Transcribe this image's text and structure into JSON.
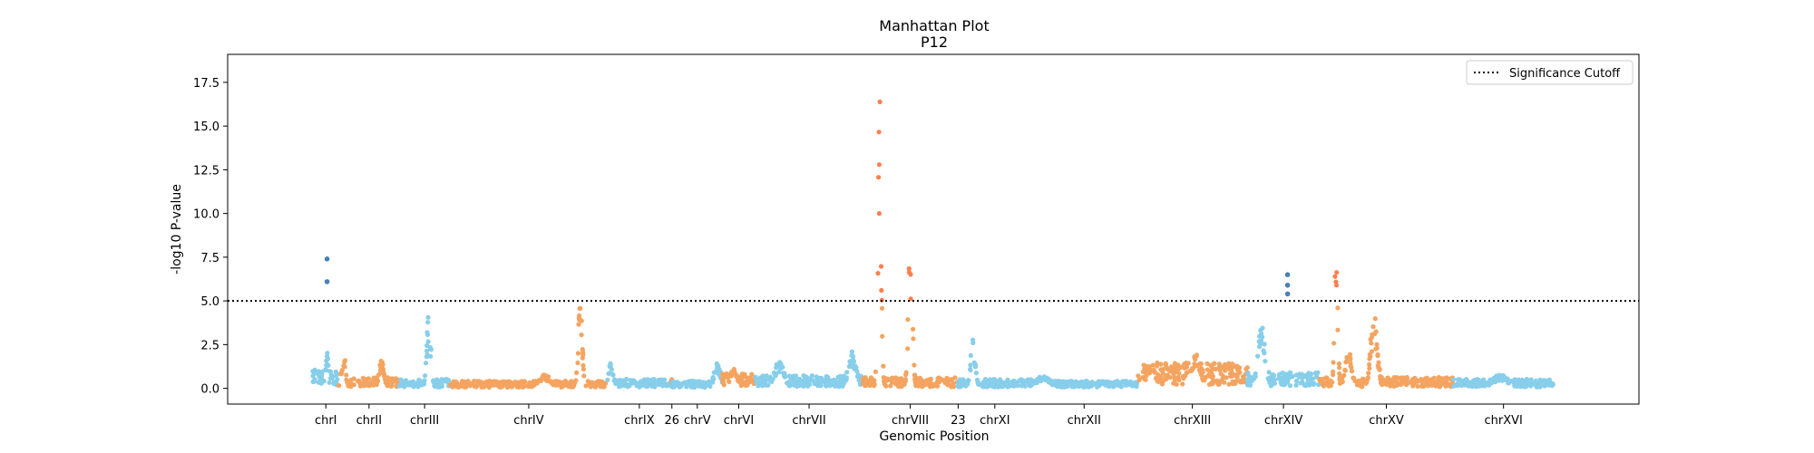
{
  "chart_data": {
    "type": "scatter",
    "title": "Manhattan Plot",
    "subtitle": "P12",
    "xlabel": "Genomic Position",
    "ylabel": "-log10 P-value",
    "ylim": [
      -0.9,
      19.1
    ],
    "yticks": [
      "0.0",
      "2.5",
      "5.0",
      "7.5",
      "10.0",
      "12.5",
      "15.0",
      "17.5"
    ],
    "significance_cutoff": 5.0,
    "legend": {
      "label": "Significance Cutoff",
      "position": "top-right"
    },
    "colors": {
      "sky": "#87ceeb",
      "sandy": "#f4a460",
      "significant_sky": "#4682b4",
      "significant_sandy": "#ff7f50",
      "cutoff_line": "#000000"
    },
    "chromosomes": [
      {
        "label": "chrI",
        "start": 0,
        "end": 22,
        "base": "sky",
        "level": 1.0,
        "peaks": [
          [
            12,
            2.2,
            1.5
          ]
        ],
        "sig": [
          [
            12,
            7.4,
            1
          ],
          [
            12,
            6.1,
            1
          ]
        ]
      },
      {
        "label": "chrII",
        "start": 22,
        "end": 73,
        "base": "sandy",
        "level": 0.6,
        "peaks": [
          [
            4,
            2.2,
            2.5
          ],
          [
            36,
            1.6,
            3
          ]
        ],
        "sig": []
      },
      {
        "label": "chrIII",
        "start": 73,
        "end": 116,
        "base": "sky",
        "level": 0.5,
        "peaks": [
          [
            25,
            4.5,
            2.5
          ]
        ],
        "sig": []
      },
      {
        "label": "chrIV",
        "start": 116,
        "end": 249,
        "base": "sandy",
        "level": 0.4,
        "peaks": [
          [
            110,
            5.0,
            2.5
          ],
          [
            80,
            0.8,
            8
          ]
        ],
        "sig": []
      },
      {
        "label": "chrIX",
        "start": 249,
        "end": 303,
        "base": "sky",
        "level": 0.5,
        "peaks": [
          [
            3,
            1.5,
            3
          ]
        ],
        "sig": []
      },
      {
        "label": "26",
        "start": 303,
        "end": 304,
        "base": "sandy",
        "level": 0.5,
        "peaks": [],
        "sig": []
      },
      {
        "label": "chrV",
        "start": 304,
        "end": 346,
        "base": "sky",
        "level": 0.4,
        "peaks": [
          [
            38,
            1.5,
            4
          ]
        ],
        "sig": []
      },
      {
        "label": "chrVI",
        "start": 346,
        "end": 374,
        "base": "sandy",
        "level": 0.8,
        "peaks": [
          [
            10,
            1.2,
            4
          ]
        ],
        "sig": []
      },
      {
        "label": "chrVII",
        "start": 374,
        "end": 465,
        "base": "sky",
        "level": 0.7,
        "peaks": [
          [
            20,
            1.6,
            6
          ],
          [
            82,
            2.1,
            5
          ]
        ],
        "sig": []
      },
      {
        "label": "chrVIII",
        "start": 465,
        "end": 545,
        "base": "sandy",
        "level": 0.6,
        "peaks": [
          [
            14,
            17.0,
            2
          ],
          [
            40,
            8.0,
            2.5
          ]
        ],
        "sig": []
      },
      {
        "label": "23",
        "start": 545,
        "end": 546,
        "base": "sky",
        "level": 0.5,
        "peaks": [],
        "sig": []
      },
      {
        "label": "chrXI",
        "start": 546,
        "end": 607,
        "base": "sky",
        "level": 0.5,
        "peaks": [
          [
            12,
            2.8,
            3
          ]
        ],
        "sig": []
      },
      {
        "label": "chrXII",
        "start": 607,
        "end": 697,
        "base": "sky",
        "level": 0.4,
        "peaks": [
          [
            10,
            0.7,
            10
          ]
        ],
        "sig": []
      },
      {
        "label": "chrXIII",
        "start": 697,
        "end": 790,
        "base": "sandy",
        "level": 1.4,
        "peaks": [
          [
            12,
            1.6,
            5
          ],
          [
            50,
            2.2,
            5
          ]
        ],
        "sig": []
      },
      {
        "label": "chrXIV",
        "start": 790,
        "end": 851,
        "base": "sky",
        "level": 0.9,
        "peaks": [
          [
            12,
            4.0,
            4
          ]
        ],
        "sig": [
          [
            34,
            6.5,
            1
          ],
          [
            34,
            5.9,
            1
          ],
          [
            34,
            5.4,
            1
          ]
        ]
      },
      {
        "label": "chrXV",
        "start": 851,
        "end": 964,
        "base": "sandy",
        "level": 0.6,
        "peaks": [
          [
            14,
            7.8,
            2
          ],
          [
            46,
            4.7,
            4
          ],
          [
            24,
            2.4,
            4
          ]
        ],
        "sig": []
      },
      {
        "label": "chrXVI",
        "start": 964,
        "end": 1049,
        "base": "sky",
        "level": 0.5,
        "peaks": [
          [
            40,
            0.8,
            10
          ]
        ],
        "sig": []
      }
    ],
    "x_extent": [
      -72,
      1121
    ]
  }
}
